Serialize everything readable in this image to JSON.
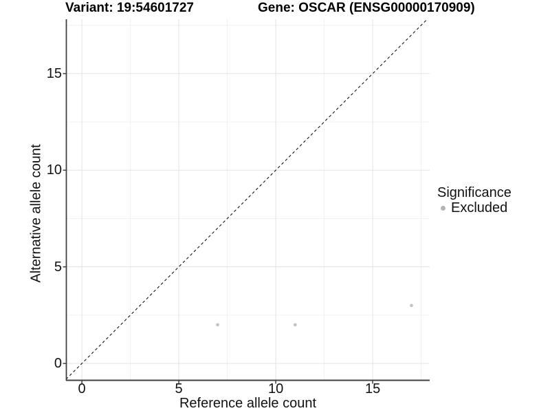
{
  "chart_data": {
    "type": "scatter",
    "title_left": "Variant: 19:54601727",
    "title_right": "Gene: OSCAR (ENSG00000170909)",
    "xlabel": "Reference allele count",
    "ylabel": "Alternative allele count",
    "xlim": [
      -0.82,
      17.94
    ],
    "ylim": [
      -0.89,
      17.81
    ],
    "x_major_ticks": [
      0,
      5,
      10,
      15
    ],
    "y_major_ticks": [
      0,
      5,
      10,
      15
    ],
    "x_minor_ticks": [
      2.5,
      7.5,
      12.5,
      17.5
    ],
    "y_minor_ticks": [
      2.5,
      7.5,
      12.5,
      17.5
    ],
    "grid": true,
    "series": [
      {
        "name": "Excluded",
        "points": [
          {
            "x": 7,
            "y": 2
          },
          {
            "x": 11,
            "y": 2
          },
          {
            "x": 17,
            "y": 3
          }
        ]
      }
    ],
    "reference_line": {
      "type": "identity",
      "slope": 1,
      "intercept": 0,
      "style": "dashed"
    },
    "legend": {
      "title": "Significance",
      "position": "right",
      "items": [
        {
          "label": "Excluded",
          "color": "#b4b4b4"
        }
      ]
    },
    "colors": {
      "point": "#c4c4c4",
      "identity_line": "#111111",
      "grid_major": "#e3e3e3",
      "grid_minor": "#f1f1f1",
      "axis_line": "#404040",
      "text": "#111111"
    }
  }
}
